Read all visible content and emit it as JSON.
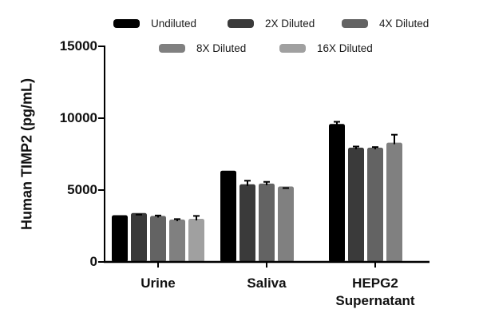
{
  "chart_data": {
    "type": "bar",
    "title": "",
    "xlabel": "",
    "ylabel": "Human TIMP2 (pg/mL)",
    "ylim": [
      0,
      15000
    ],
    "yticks": [
      0,
      5000,
      10000,
      15000
    ],
    "ytick_labels": [
      "0",
      "5000",
      "10000",
      "15000"
    ],
    "grid": false,
    "legend_position": "top",
    "categories": [
      "Urine",
      "Saliva",
      "HEPG2 Supernatant"
    ],
    "category_labels": [
      [
        "Urine"
      ],
      [
        "Saliva"
      ],
      [
        "HEPG2",
        "Supernatant"
      ]
    ],
    "series": [
      {
        "name": "Undiluted",
        "color": "#000000",
        "values": [
          3250,
          6350,
          9600
        ],
        "errors": [
          0,
          0,
          150
        ]
      },
      {
        "name": "2X Diluted",
        "color": "#3a3a3a",
        "values": [
          3400,
          5400,
          7950
        ],
        "errors": [
          0,
          250,
          80
        ]
      },
      {
        "name": "4X Diluted",
        "color": "#636363",
        "values": [
          3200,
          5450,
          7950
        ],
        "errors": [
          30,
          120,
          40
        ]
      },
      {
        "name": "8X Diluted",
        "color": "#808080",
        "values": [
          2950,
          5250,
          8300
        ],
        "errors": [
          30,
          0,
          550
        ]
      },
      {
        "name": "16X Diluted",
        "color": "#a0a0a0",
        "values": [
          3000,
          null,
          null
        ],
        "errors": [
          200,
          null,
          null
        ]
      }
    ]
  },
  "legend": {
    "items": [
      {
        "label": "Undiluted",
        "color": "#000000"
      },
      {
        "label": "2X Diluted",
        "color": "#3a3a3a"
      },
      {
        "label": "4X Diluted",
        "color": "#636363"
      },
      {
        "label": "8X Diluted",
        "color": "#808080"
      },
      {
        "label": "16X Diluted",
        "color": "#a0a0a0"
      }
    ]
  },
  "axes": {
    "ylabel": "Human TIMP2 (pg/mL)",
    "yticks": [
      "0",
      "5000",
      "10000",
      "15000"
    ],
    "categories": [
      "Urine",
      "Saliva",
      "HEPG2",
      "Supernatant"
    ]
  }
}
